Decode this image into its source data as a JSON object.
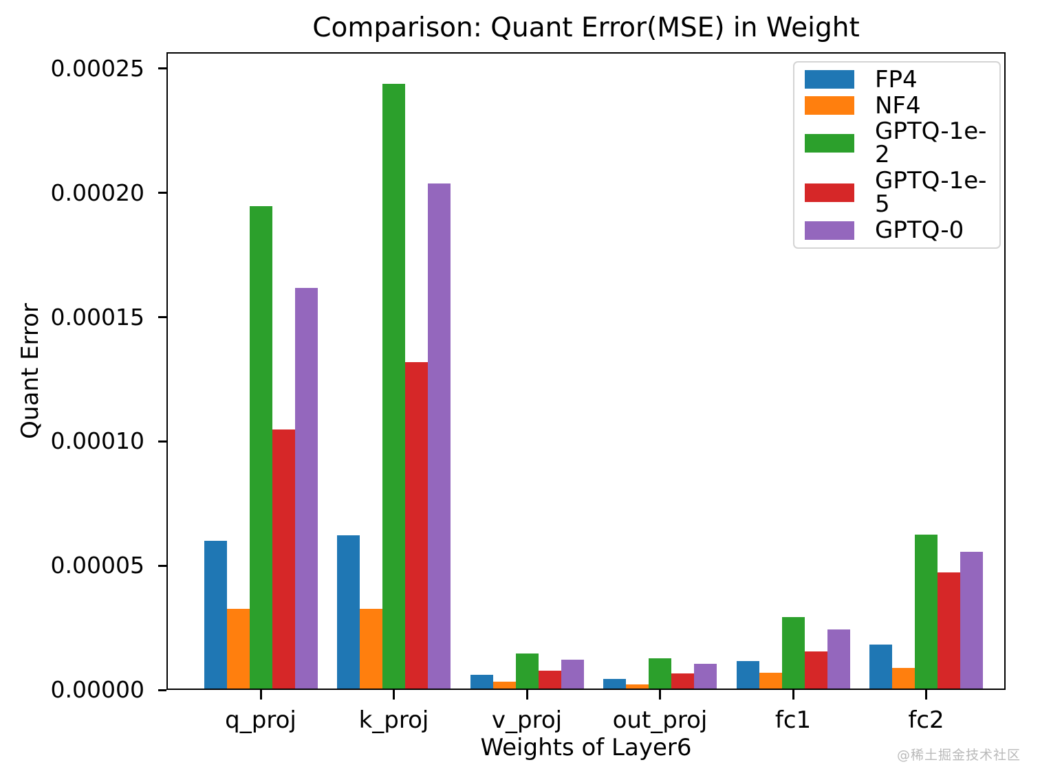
{
  "title": "Comparison: Quant Error(MSE) in Weight",
  "watermark": "@稀土掘金技术社区",
  "chart_data": {
    "type": "bar",
    "title": "Comparison: Quant Error(MSE) in Weight",
    "xlabel": "Weights of Layer6",
    "ylabel": "Quant Error",
    "categories": [
      "q_proj",
      "k_proj",
      "v_proj",
      "out_proj",
      "fc1",
      "fc2"
    ],
    "series": [
      {
        "name": "FP4",
        "color": "#1f77b4",
        "values": [
          6e-05,
          6.22e-05,
          6.1e-06,
          4.5e-06,
          1.16e-05,
          1.83e-05
        ]
      },
      {
        "name": "NF4",
        "color": "#ff7f0e",
        "values": [
          3.26e-05,
          3.26e-05,
          3.3e-06,
          2.2e-06,
          6.9e-06,
          8.8e-06
        ]
      },
      {
        "name": "GPTQ-1e-2",
        "color": "#2ca02c",
        "values": [
          0.0001946,
          0.0002439,
          1.47e-05,
          1.27e-05,
          2.93e-05,
          6.25e-05
        ]
      },
      {
        "name": "GPTQ-1e-5",
        "color": "#d62728",
        "values": [
          0.0001048,
          0.0001319,
          7.7e-06,
          6.6e-06,
          1.55e-05,
          4.73e-05
        ]
      },
      {
        "name": "GPTQ-0",
        "color": "#9467bd",
        "values": [
          0.0001618,
          0.0002038,
          1.22e-05,
          1.05e-05,
          2.43e-05,
          5.56e-05
        ]
      }
    ],
    "ylim": [
      0,
      0.0002566
    ],
    "yticks": [
      0.0,
      5e-05,
      0.0001,
      0.00015,
      0.0002,
      0.00025
    ],
    "ytick_labels": [
      "0.00000",
      "0.00005",
      "0.00010",
      "0.00015",
      "0.00020",
      "0.00025"
    ],
    "legend_position": "upper right",
    "grid": false
  }
}
